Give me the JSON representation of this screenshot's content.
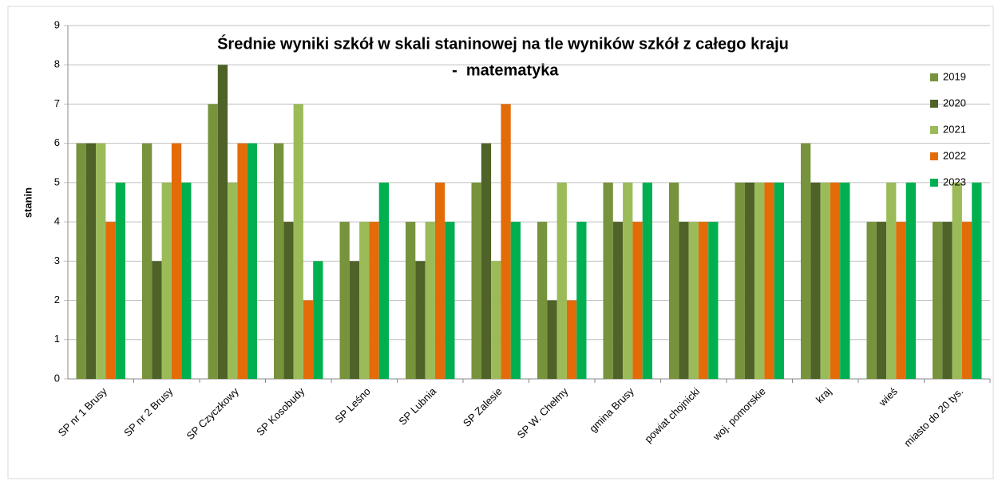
{
  "chart_data": {
    "type": "bar",
    "title": [
      "Średnie wyniki szkół w skali staninowej na tle wyników szkół z całego kraju",
      " -  matematyka"
    ],
    "y_label": "stanin",
    "categories": [
      "SP nr 1 Brusy",
      "SP nr 2 Brusy",
      "SP Czyczkowy",
      "SP Kosobudy",
      "SP Leśno",
      "SP Lubnia",
      "SP Zalesie",
      "SP W. Chełmy",
      "gmina Brusy",
      "powiat chojnicki",
      "woj. pomorskie",
      "kraj",
      "wieś",
      "miasto do 20 tys."
    ],
    "series": [
      {
        "name": "2019",
        "color": "#77933c",
        "values": [
          6,
          6,
          7,
          6,
          4,
          4,
          5,
          4,
          5,
          5,
          5,
          6,
          4,
          4
        ]
      },
      {
        "name": "2020",
        "color": "#4f6228",
        "values": [
          6,
          3,
          8,
          4,
          3,
          3,
          6,
          2,
          4,
          4,
          5,
          5,
          4,
          4
        ]
      },
      {
        "name": "2021",
        "color": "#9bbb59",
        "values": [
          6,
          5,
          5,
          7,
          4,
          4,
          3,
          5,
          5,
          4,
          5,
          5,
          5,
          5
        ]
      },
      {
        "name": "2022",
        "color": "#e36c09",
        "values": [
          4,
          6,
          6,
          2,
          4,
          5,
          7,
          2,
          4,
          4,
          5,
          5,
          4,
          4
        ]
      },
      {
        "name": "2023",
        "color": "#00b050",
        "values": [
          5,
          5,
          6,
          3,
          5,
          4,
          4,
          4,
          5,
          4,
          5,
          5,
          5,
          5
        ]
      }
    ],
    "ylim": [
      0,
      9
    ],
    "yticks": [
      0,
      1,
      2,
      3,
      4,
      5,
      6,
      7,
      8,
      9
    ],
    "grid": true,
    "legend": "right"
  }
}
